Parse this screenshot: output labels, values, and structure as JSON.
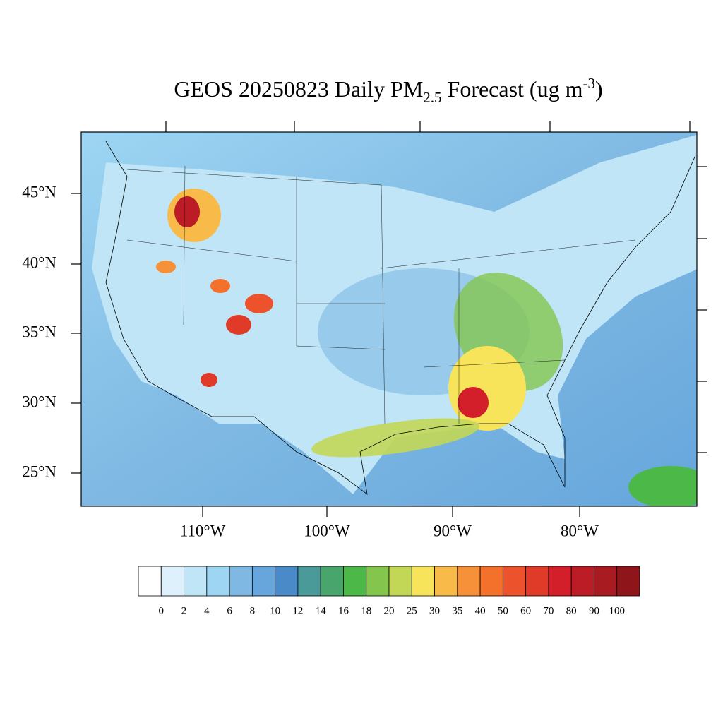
{
  "title": {
    "text": "GEOS 20250823 Daily PM",
    "subscript": "2.5",
    "text2": " Forecast (ug m",
    "superscript": "-3",
    "text3": ")"
  },
  "map": {
    "lat_labels": [
      "45°N",
      "40°N",
      "35°N",
      "30°N",
      "25°N"
    ],
    "lon_labels": [
      "110°W",
      "100°W",
      "90°W",
      "80°W"
    ]
  },
  "colorbar": {
    "colors": [
      "#ffffff",
      "#ddf0fb",
      "#bfe5f7",
      "#9dd5f3",
      "#7fb9e3",
      "#66a6dc",
      "#4a8ac9",
      "#4a9a9a",
      "#48a56c",
      "#4cb848",
      "#84c54e",
      "#c3d757",
      "#f8e45b",
      "#f8bb4a",
      "#f69139",
      "#f3712b",
      "#ec532c",
      "#df3b28",
      "#d21f2a",
      "#bb1c26",
      "#a81b21",
      "#8e161b"
    ],
    "labels": [
      0,
      2,
      4,
      6,
      8,
      10,
      12,
      14,
      16,
      18,
      20,
      25,
      30,
      35,
      40,
      50,
      60,
      70,
      80,
      90,
      100
    ]
  }
}
